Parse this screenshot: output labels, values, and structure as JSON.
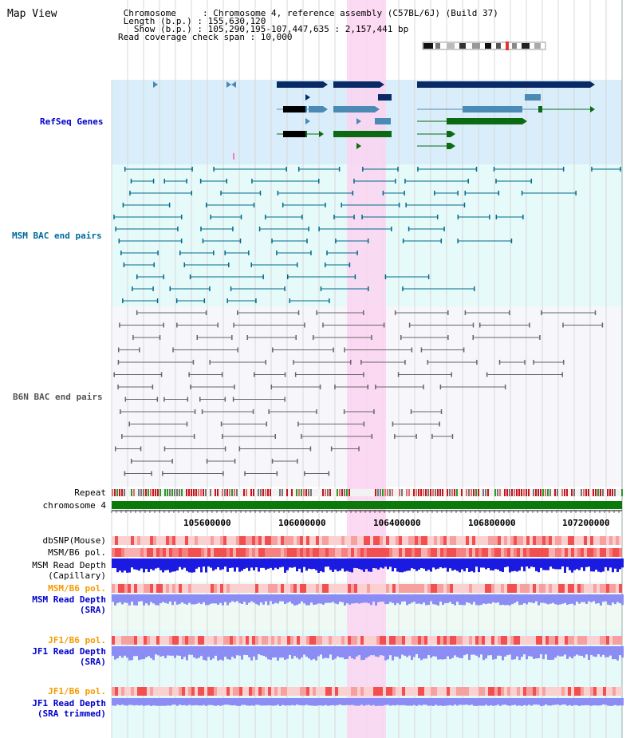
{
  "header": {
    "title": "Map View",
    "chromosome_line": " Chromosome     : Chromosome 4, reference assembly (C57BL/6J) (Build 37)",
    "length_line": " Length (b.p.) : 155,630,120",
    "show_line": "   Show (b.p.) : 105,290,195-107,447,635 : 2,157,441 bp",
    "coverage_line": "Read coverage check span : 10,000"
  },
  "tracks": {
    "refseq": "RefSeq Genes",
    "msm_bac": "MSM BAC end pairs",
    "b6n_bac": "B6N BAC end pairs",
    "repeat": "Repeat",
    "chromosome": "chromosome 4"
  },
  "axis": {
    "ticks": [
      "105600000",
      "106000000",
      "106400000",
      "106800000",
      "107200000"
    ]
  },
  "lower_tracks": {
    "dbsnp": "dbSNP(Mouse)",
    "msm_b6_pol": "MSM/B6 pol.",
    "msm_read_depth_cap_1": "MSM Read Depth",
    "msm_read_depth_cap_2": "(Capillary)",
    "msm_b6_pol_2": "MSM/B6 pol.",
    "msm_read_depth_sra_1": "MSM Read Depth",
    "msm_read_depth_sra_2": "(SRA)",
    "jf1_b6_pol": "JF1/B6 pol.",
    "jf1_read_depth_1": "JF1 Read Depth",
    "jf1_read_depth_2": "(SRA)",
    "jf1_b6_pol_2": "JF1/B6 pol.",
    "jf1_read_depth_trim_1": "JF1 Read Depth",
    "jf1_read_depth_trim_2": "(SRA trimmed)"
  },
  "colors": {
    "refseq_bg": "#d9eefa",
    "msm_bg": "#e6fafa",
    "b6n_bg": "#f7f7fb",
    "highlight": "#fbd3f1",
    "gene_dark": "#0a2a66",
    "gene_mid": "#4a8ab5",
    "gene_green": "#0c6b12",
    "msm_line": "#006a8a",
    "b6n_line": "#666666",
    "chromosome_green": "#0b7a0b",
    "depth_blue": "#1a1ae0",
    "depth_light": "#8c8cf5"
  }
}
